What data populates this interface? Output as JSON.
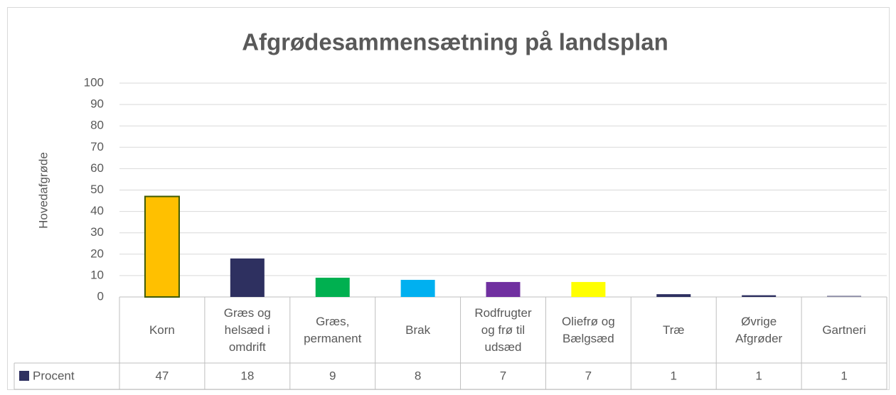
{
  "chart_data": {
    "type": "bar",
    "title": "Afgrødesammensætning på landsplan",
    "y_label": "Hovedafgrøde",
    "categories": [
      "Korn",
      "Græs og helsæd i omdrift",
      "Græs, permanent",
      "Brak",
      "Rodfrugter og frø til udsæd",
      "Oliefrø og Bælgsæd",
      "Træ",
      "Øvrige Afgrøder",
      "Gartneri"
    ],
    "series": [
      {
        "name": "Procent",
        "color": "#2e3060",
        "values": [
          47,
          18,
          9,
          8,
          7,
          7,
          1.3,
          0.8,
          0.6
        ],
        "value_labels": [
          "47",
          "18",
          "9",
          "8",
          "7",
          "7",
          "1",
          "1",
          "1"
        ],
        "colors": [
          "#ffc000",
          "#2e3060",
          "#00b050",
          "#00b0f0",
          "#7030a0",
          "#ffff00",
          "#2e3060",
          "#2e3060",
          "#8e8ea8"
        ]
      }
    ],
    "ylim": [
      0,
      100
    ],
    "yticks": [
      0,
      10,
      20,
      30,
      40,
      50,
      60,
      70,
      80,
      90,
      100
    ],
    "grid": true
  }
}
